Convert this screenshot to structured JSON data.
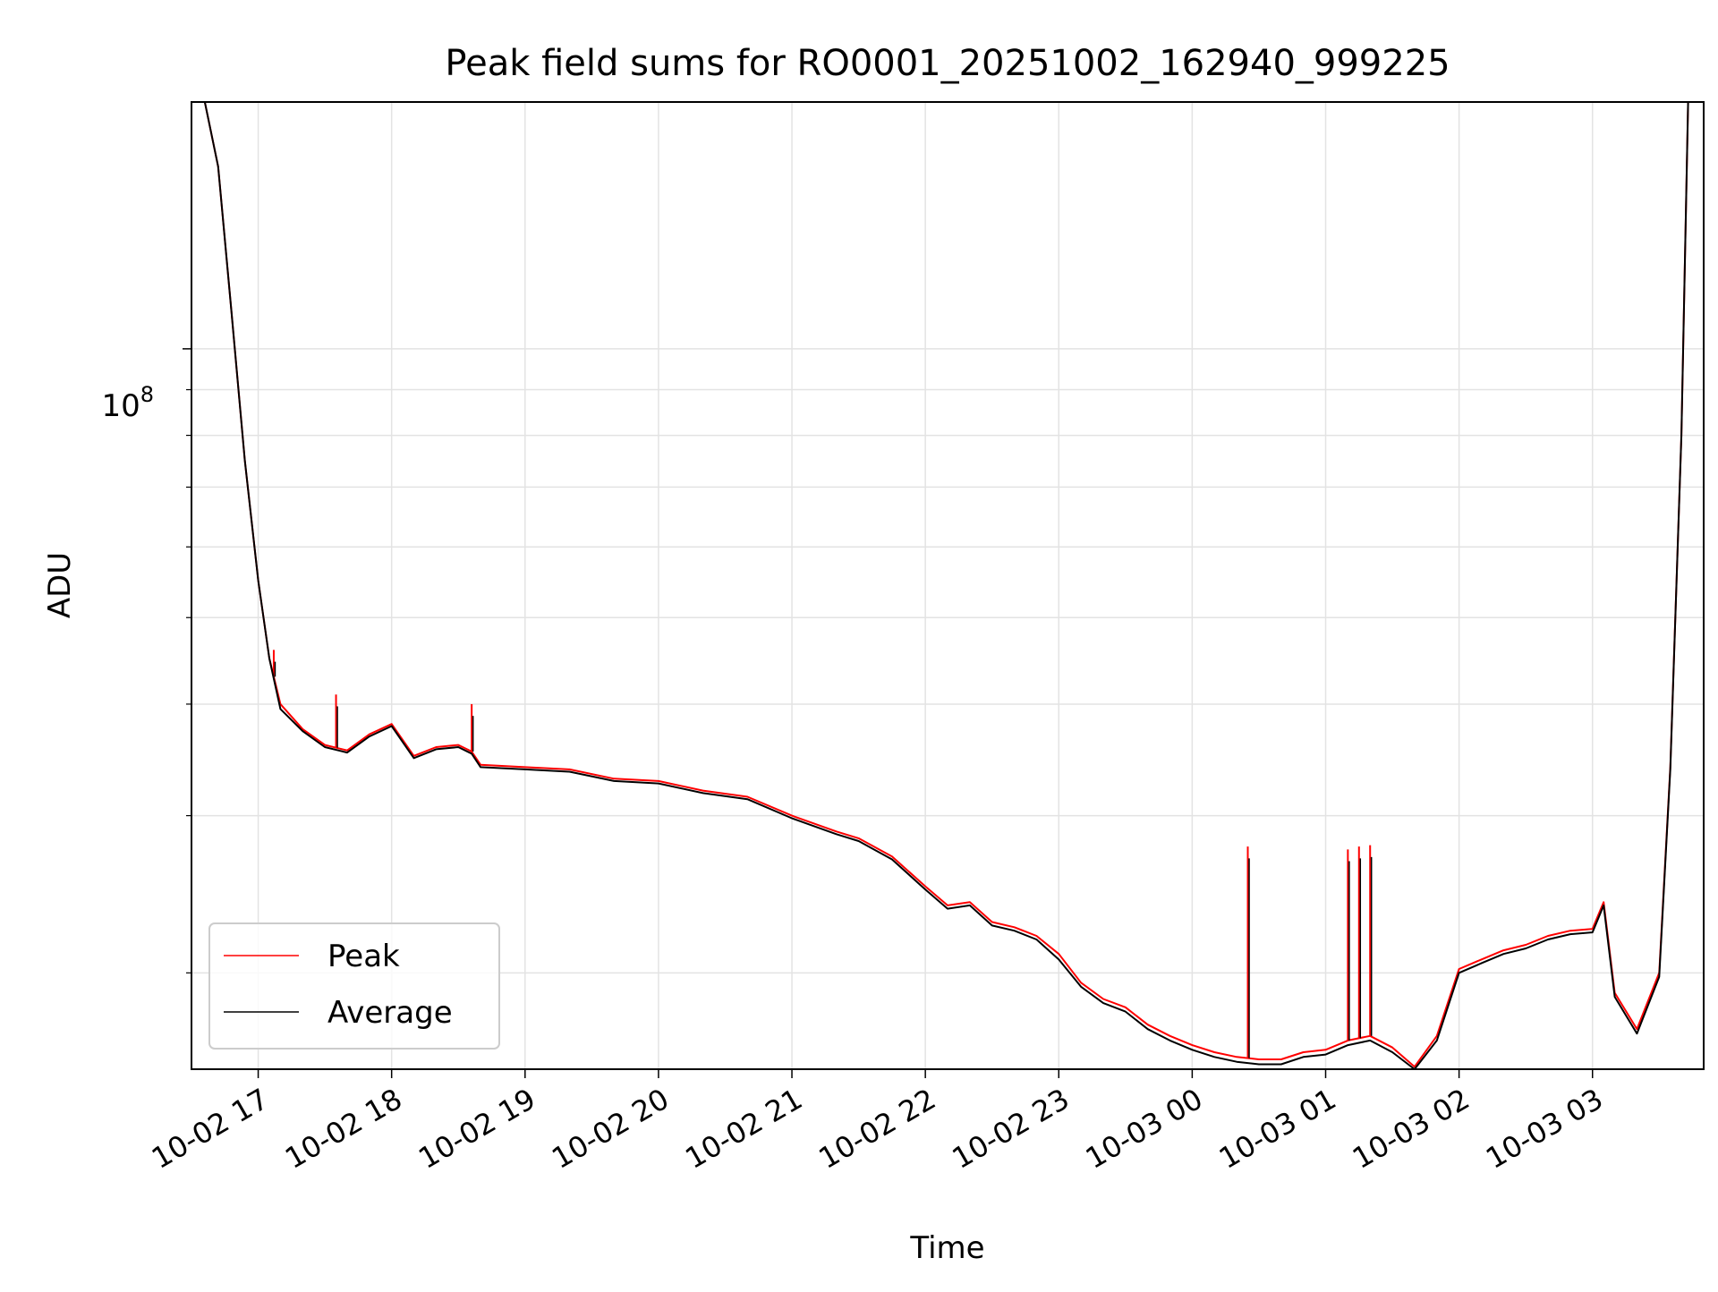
{
  "chart_data": {
    "type": "line",
    "title": "Peak field sums for RO0001_20251002_162940_999225",
    "xlabel": "Time",
    "ylabel": "ADU",
    "yscale": "log",
    "xlim": [
      "2025-10-02 16:30",
      "2025-10-03 03:50"
    ],
    "ylim": [
      15600000,
      189000000
    ],
    "x_ticks": [
      "10-02 17",
      "10-02 18",
      "10-02 19",
      "10-02 20",
      "10-02 21",
      "10-02 22",
      "10-02 23",
      "10-03 00",
      "10-03 01",
      "10-03 02",
      "10-03 03"
    ],
    "y_major_ticks": [
      {
        "value": 100000000,
        "base": "10",
        "exponent": "8"
      }
    ],
    "y_minor_ticks": [
      20000000,
      30000000,
      40000000,
      50000000,
      60000000,
      70000000,
      80000000,
      90000000
    ],
    "grid": true,
    "legend_position": "lower-left",
    "x": [
      "2025-10-02 16:30",
      "2025-10-02 16:36",
      "2025-10-02 16:42",
      "2025-10-02 16:48",
      "2025-10-02 16:54",
      "2025-10-02 17:00",
      "2025-10-02 17:05",
      "2025-10-02 17:10",
      "2025-10-02 17:20",
      "2025-10-02 17:30",
      "2025-10-02 17:40",
      "2025-10-02 17:50",
      "2025-10-02 18:00",
      "2025-10-02 18:10",
      "2025-10-02 18:20",
      "2025-10-02 18:30",
      "2025-10-02 18:36",
      "2025-10-02 18:40",
      "2025-10-02 19:00",
      "2025-10-02 19:20",
      "2025-10-02 19:40",
      "2025-10-02 20:00",
      "2025-10-02 20:20",
      "2025-10-02 20:40",
      "2025-10-02 21:00",
      "2025-10-02 21:20",
      "2025-10-02 21:30",
      "2025-10-02 21:45",
      "2025-10-02 22:00",
      "2025-10-02 22:10",
      "2025-10-02 22:20",
      "2025-10-02 22:30",
      "2025-10-02 22:40",
      "2025-10-02 22:50",
      "2025-10-02 23:00",
      "2025-10-02 23:10",
      "2025-10-02 23:20",
      "2025-10-02 23:30",
      "2025-10-02 23:40",
      "2025-10-02 23:50",
      "2025-10-03 00:00",
      "2025-10-03 00:10",
      "2025-10-03 00:20",
      "2025-10-03 00:30",
      "2025-10-03 00:40",
      "2025-10-03 00:50",
      "2025-10-03 01:00",
      "2025-10-03 01:10",
      "2025-10-03 01:20",
      "2025-10-03 01:30",
      "2025-10-03 01:40",
      "2025-10-03 01:50",
      "2025-10-03 02:00",
      "2025-10-03 02:10",
      "2025-10-03 02:20",
      "2025-10-03 02:30",
      "2025-10-03 02:40",
      "2025-10-03 02:50",
      "2025-10-03 03:00",
      "2025-10-03 03:05",
      "2025-10-03 03:10",
      "2025-10-03 03:20",
      "2025-10-03 03:30",
      "2025-10-03 03:35",
      "2025-10-03 03:40",
      "2025-10-03 03:43"
    ],
    "series": [
      {
        "name": "Peak",
        "color": "#ff0000",
        "values": [
          189000000,
          189000000,
          160000000,
          110000000,
          75000000,
          55000000,
          45000000,
          40000000,
          37500000,
          36000000,
          35500000,
          37000000,
          38000000,
          35000000,
          35800000,
          36000000,
          35400000,
          34200000,
          34000000,
          33800000,
          33000000,
          32800000,
          32000000,
          31500000,
          30000000,
          28800000,
          28300000,
          27000000,
          25000000,
          23800000,
          24000000,
          22800000,
          22500000,
          22000000,
          21000000,
          19500000,
          18700000,
          18300000,
          17500000,
          17000000,
          16600000,
          16300000,
          16100000,
          16000000,
          16000000,
          16300000,
          16400000,
          16800000,
          17000000,
          16500000,
          15700000,
          17000000,
          20200000,
          20700000,
          21200000,
          21500000,
          22000000,
          22300000,
          22400000,
          24000000,
          19000000,
          17300000,
          20000000,
          34000000,
          80000000,
          189000000
        ],
        "spikes": [
          {
            "x": "2025-10-02 17:07",
            "value": 46000000
          },
          {
            "x": "2025-10-02 17:35",
            "value": 41000000
          },
          {
            "x": "2025-10-02 18:36",
            "value": 40000000
          },
          {
            "x": "2025-10-03 00:25",
            "value": 27700000
          },
          {
            "x": "2025-10-03 01:10",
            "value": 27500000
          },
          {
            "x": "2025-10-03 01:15",
            "value": 27700000
          },
          {
            "x": "2025-10-03 01:20",
            "value": 27800000
          }
        ]
      },
      {
        "name": "Average",
        "color": "#000000",
        "values": [
          189000000,
          189000000,
          160000000,
          110000000,
          75000000,
          55000000,
          45000000,
          39500000,
          37300000,
          35800000,
          35300000,
          36800000,
          37800000,
          34800000,
          35600000,
          35800000,
          35200000,
          34000000,
          33800000,
          33600000,
          32800000,
          32600000,
          31800000,
          31300000,
          29800000,
          28600000,
          28100000,
          26800000,
          24800000,
          23600000,
          23800000,
          22600000,
          22300000,
          21800000,
          20700000,
          19300000,
          18500000,
          18100000,
          17300000,
          16800000,
          16400000,
          16100000,
          15900000,
          15800000,
          15800000,
          16100000,
          16200000,
          16600000,
          16800000,
          16300000,
          15600000,
          16800000,
          20000000,
          20500000,
          21000000,
          21300000,
          21800000,
          22100000,
          22200000,
          23800000,
          18800000,
          17100000,
          19800000,
          33800000,
          80000000,
          189000000
        ]
      }
    ]
  }
}
